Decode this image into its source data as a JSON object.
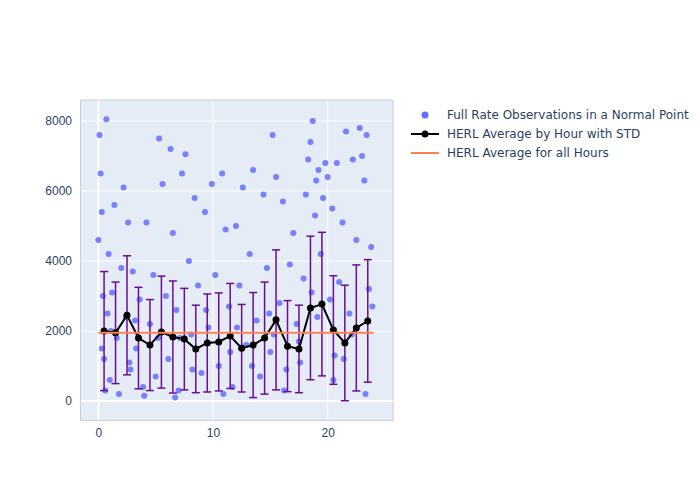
{
  "chart_data": {
    "type": "scatter",
    "xlim": [
      -1.6,
      25.7
    ],
    "ylim": [
      -540,
      8600
    ],
    "xticks": [
      0,
      10,
      20
    ],
    "yticks": [
      0,
      2000,
      4000,
      6000,
      8000
    ],
    "grid": true,
    "legend": "right",
    "series": [
      {
        "name": "Full Rate Observations in a Normal Point",
        "type": "scatter",
        "color": "#636efa",
        "marker": "circle",
        "x": [
          0.0,
          0.1,
          0.2,
          0.3,
          0.4,
          0.5,
          0.6,
          0.7,
          0.8,
          0.9,
          1.0,
          1.2,
          1.4,
          1.6,
          1.8,
          2.0,
          2.2,
          2.4,
          2.6,
          2.8,
          3.0,
          3.3,
          3.6,
          3.9,
          4.2,
          4.5,
          4.8,
          5.0,
          5.3,
          5.6,
          5.9,
          6.1,
          6.3,
          6.5,
          6.8,
          7.0,
          7.3,
          7.6,
          7.9,
          8.1,
          8.4,
          8.7,
          9.0,
          9.3,
          9.6,
          9.9,
          10.2,
          10.5,
          10.8,
          11.1,
          11.4,
          11.7,
          12.0,
          12.3,
          12.6,
          12.9,
          13.2,
          13.5,
          13.8,
          14.1,
          14.4,
          14.7,
          15.0,
          15.2,
          15.5,
          15.8,
          16.1,
          16.4,
          16.7,
          17.0,
          17.3,
          17.6,
          17.9,
          18.1,
          18.3,
          18.5,
          18.7,
          18.9,
          19.0,
          19.2,
          19.4,
          19.6,
          19.8,
          20.0,
          20.2,
          20.4,
          20.6,
          20.8,
          21.0,
          21.3,
          21.6,
          21.9,
          22.2,
          22.5,
          22.8,
          23.0,
          23.2,
          23.4,
          23.6,
          23.8,
          0.3,
          1.1,
          2.7,
          4.0,
          5.2,
          6.7,
          8.2,
          9.4,
          10.9,
          12.1,
          13.4,
          14.9,
          16.2,
          17.5,
          19.1,
          20.5,
          22.1,
          23.3,
          23.9,
          11.5,
          3.2,
          7.1,
          15.3,
          18.6,
          21.4
        ],
        "values": [
          4600,
          7600,
          6500,
          5400,
          3000,
          1200,
          300,
          8050,
          2500,
          4200,
          600,
          3100,
          5600,
          1800,
          200,
          3800,
          6100,
          2400,
          5100,
          900,
          3700,
          1500,
          2900,
          400,
          5100,
          2200,
          3600,
          700,
          7500,
          6200,
          3000,
          1200,
          7200,
          4800,
          2600,
          300,
          6500,
          7050,
          4000,
          1900,
          5800,
          3300,
          800,
          5400,
          2100,
          6200,
          3600,
          1000,
          6500,
          4900,
          2700,
          400,
          5000,
          3300,
          6100,
          1600,
          4200,
          6600,
          2300,
          700,
          5900,
          3800,
          1400,
          7600,
          6400,
          2800,
          5700,
          900,
          3900,
          4800,
          2200,
          1100,
          3500,
          5900,
          6900,
          7400,
          8000,
          5300,
          6300,
          6600,
          4200,
          5800,
          6800,
          6400,
          2900,
          5500,
          1300,
          6800,
          3400,
          5100,
          7700,
          2500,
          6900,
          4600,
          7800,
          7000,
          6300,
          7600,
          3200,
          4400,
          1500,
          2000,
          1100,
          150,
          1800,
          100,
          900,
          2600,
          200,
          2100,
          1000,
          2500,
          300,
          1700,
          2400,
          600,
          1900,
          200,
          2700,
          1400,
          2300,
          1800,
          1900,
          3100,
          1200
        ]
      },
      {
        "name": "HERL Average by Hour with STD",
        "type": "line",
        "color": "#000000",
        "marker": "circle",
        "x": [
          0.5,
          1.5,
          2.5,
          3.5,
          4.5,
          5.5,
          6.5,
          7.5,
          8.5,
          9.5,
          10.5,
          11.5,
          12.5,
          13.5,
          14.5,
          15.5,
          16.5,
          17.5,
          18.5,
          19.5,
          20.5,
          21.5,
          22.5,
          23.5
        ],
        "values": [
          2000,
          1950,
          2450,
          1800,
          1600,
          1970,
          1830,
          1770,
          1490,
          1660,
          1690,
          1860,
          1510,
          1600,
          1800,
          2320,
          1570,
          1490,
          2660,
          2770,
          2030,
          1660,
          2090,
          2290
        ],
        "error": [
          1700,
          1450,
          1700,
          1450,
          1300,
          1600,
          1600,
          1450,
          1250,
          1400,
          1400,
          1500,
          1250,
          1500,
          1600,
          2000,
          1300,
          1250,
          2050,
          2050,
          1550,
          1650,
          1800,
          1750
        ]
      },
      {
        "name": "HERL Average for all Hours",
        "type": "line",
        "color": "#ff7f50",
        "x": [
          0,
          24
        ],
        "values": [
          1950,
          1950
        ]
      }
    ]
  }
}
